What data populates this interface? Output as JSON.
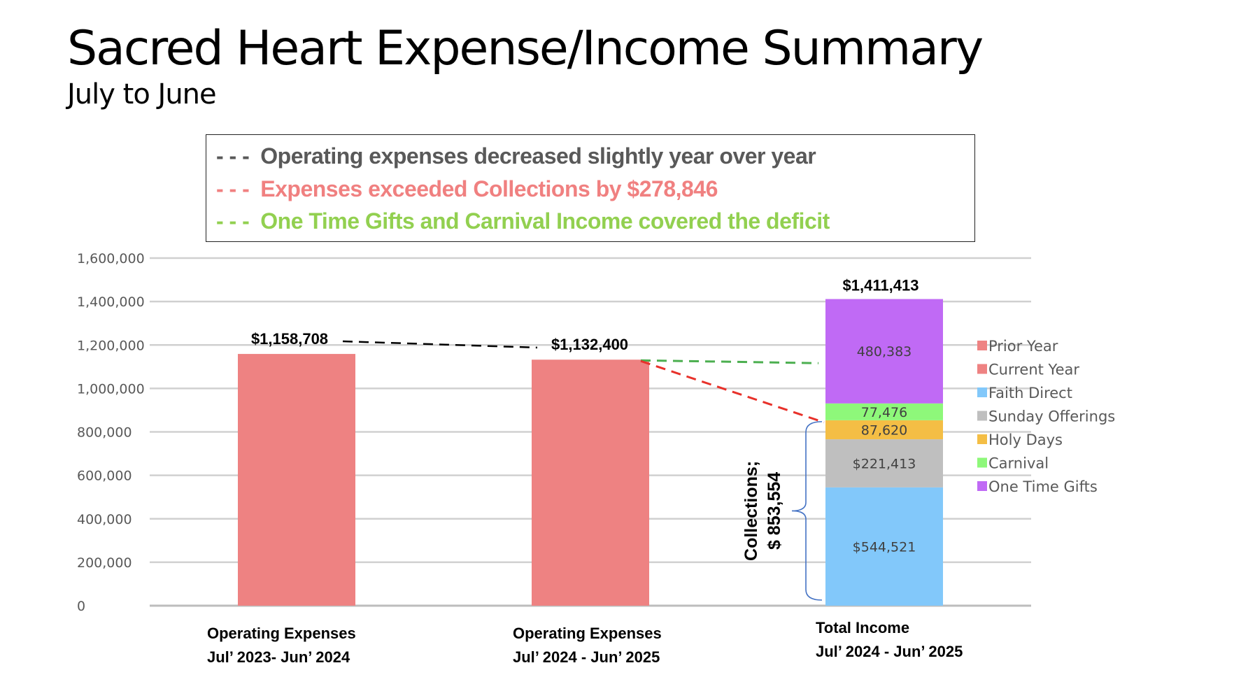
{
  "header": {
    "title": "Sacred Heart Expense/Income Summary",
    "subtitle": "July to June"
  },
  "notes": [
    {
      "dash": "- - -",
      "text": "Operating expenses decreased slightly year over year",
      "color": "#595959"
    },
    {
      "dash": "- - -",
      "text": "Expenses exceeded Collections by $278,846",
      "color": "#F08080"
    },
    {
      "dash": "- - -",
      "text": "One Time Gifts and Carnival Income covered the deficit",
      "color": "#92D050"
    }
  ],
  "chart_data": {
    "type": "bar",
    "stacked": true,
    "title": "",
    "xlabel": "",
    "ylabel": "",
    "ylim": [
      0,
      1600000
    ],
    "yticks": [
      0,
      200000,
      400000,
      600000,
      800000,
      1000000,
      1200000,
      1400000,
      1600000
    ],
    "ytick_labels": [
      "0",
      "200,000",
      "400,000",
      "600,000",
      "800,000",
      "1,000,000",
      "1,200,000",
      "1,400,000",
      "1,600,000"
    ],
    "grid": true,
    "legend_position": "right",
    "categories": [
      {
        "line1": "Operating Expenses",
        "line2": "Jul’ 2023- Jun’ 2024"
      },
      {
        "line1": "Operating Expenses",
        "line2": "Jul’ 2024 - Jun’ 2025"
      },
      {
        "line1": "Total Income",
        "line2": "Jul’ 2024 - Jun’ 2025"
      }
    ],
    "series": [
      {
        "name": "Prior Year",
        "color": "#EE8282",
        "values": [
          1158708,
          0,
          0
        ],
        "labels": [
          "",
          "",
          ""
        ]
      },
      {
        "name": "Current Year",
        "color": "#EE8282",
        "values": [
          0,
          1132400,
          0
        ],
        "labels": [
          "",
          "",
          ""
        ]
      },
      {
        "name": "Faith Direct",
        "color": "#82C8FA",
        "values": [
          0,
          0,
          544521
        ],
        "labels": [
          "",
          "",
          "$544,521"
        ]
      },
      {
        "name": "Sunday Offerings",
        "color": "#BFBFBF",
        "values": [
          0,
          0,
          221413
        ],
        "labels": [
          "",
          "",
          "$221,413"
        ]
      },
      {
        "name": "Holy Days",
        "color": "#F4BE45",
        "values": [
          0,
          0,
          87620
        ],
        "labels": [
          "",
          "",
          "87,620"
        ]
      },
      {
        "name": "Carnival",
        "color": "#8EF87A",
        "values": [
          0,
          0,
          77476
        ],
        "labels": [
          "",
          "",
          "77,476"
        ]
      },
      {
        "name": "One Time Gifts",
        "color": "#C06AF5",
        "values": [
          0,
          0,
          480383
        ],
        "labels": [
          "",
          "",
          "480,383"
        ]
      }
    ],
    "totals": [
      {
        "value": 1158708,
        "label": "$1,158,708"
      },
      {
        "value": 1132400,
        "label": "$1,132,400"
      },
      {
        "value": 1411413,
        "label": "$1,411,413"
      }
    ],
    "annotations": {
      "collections_line1": "Collections;",
      "collections_line2": "$ 853,554",
      "collections_value": 853554,
      "trend_color": "#000000",
      "deficit_color": "#E8312A",
      "covered_color": "#4CAF50",
      "brace_color": "#4472C4"
    }
  }
}
